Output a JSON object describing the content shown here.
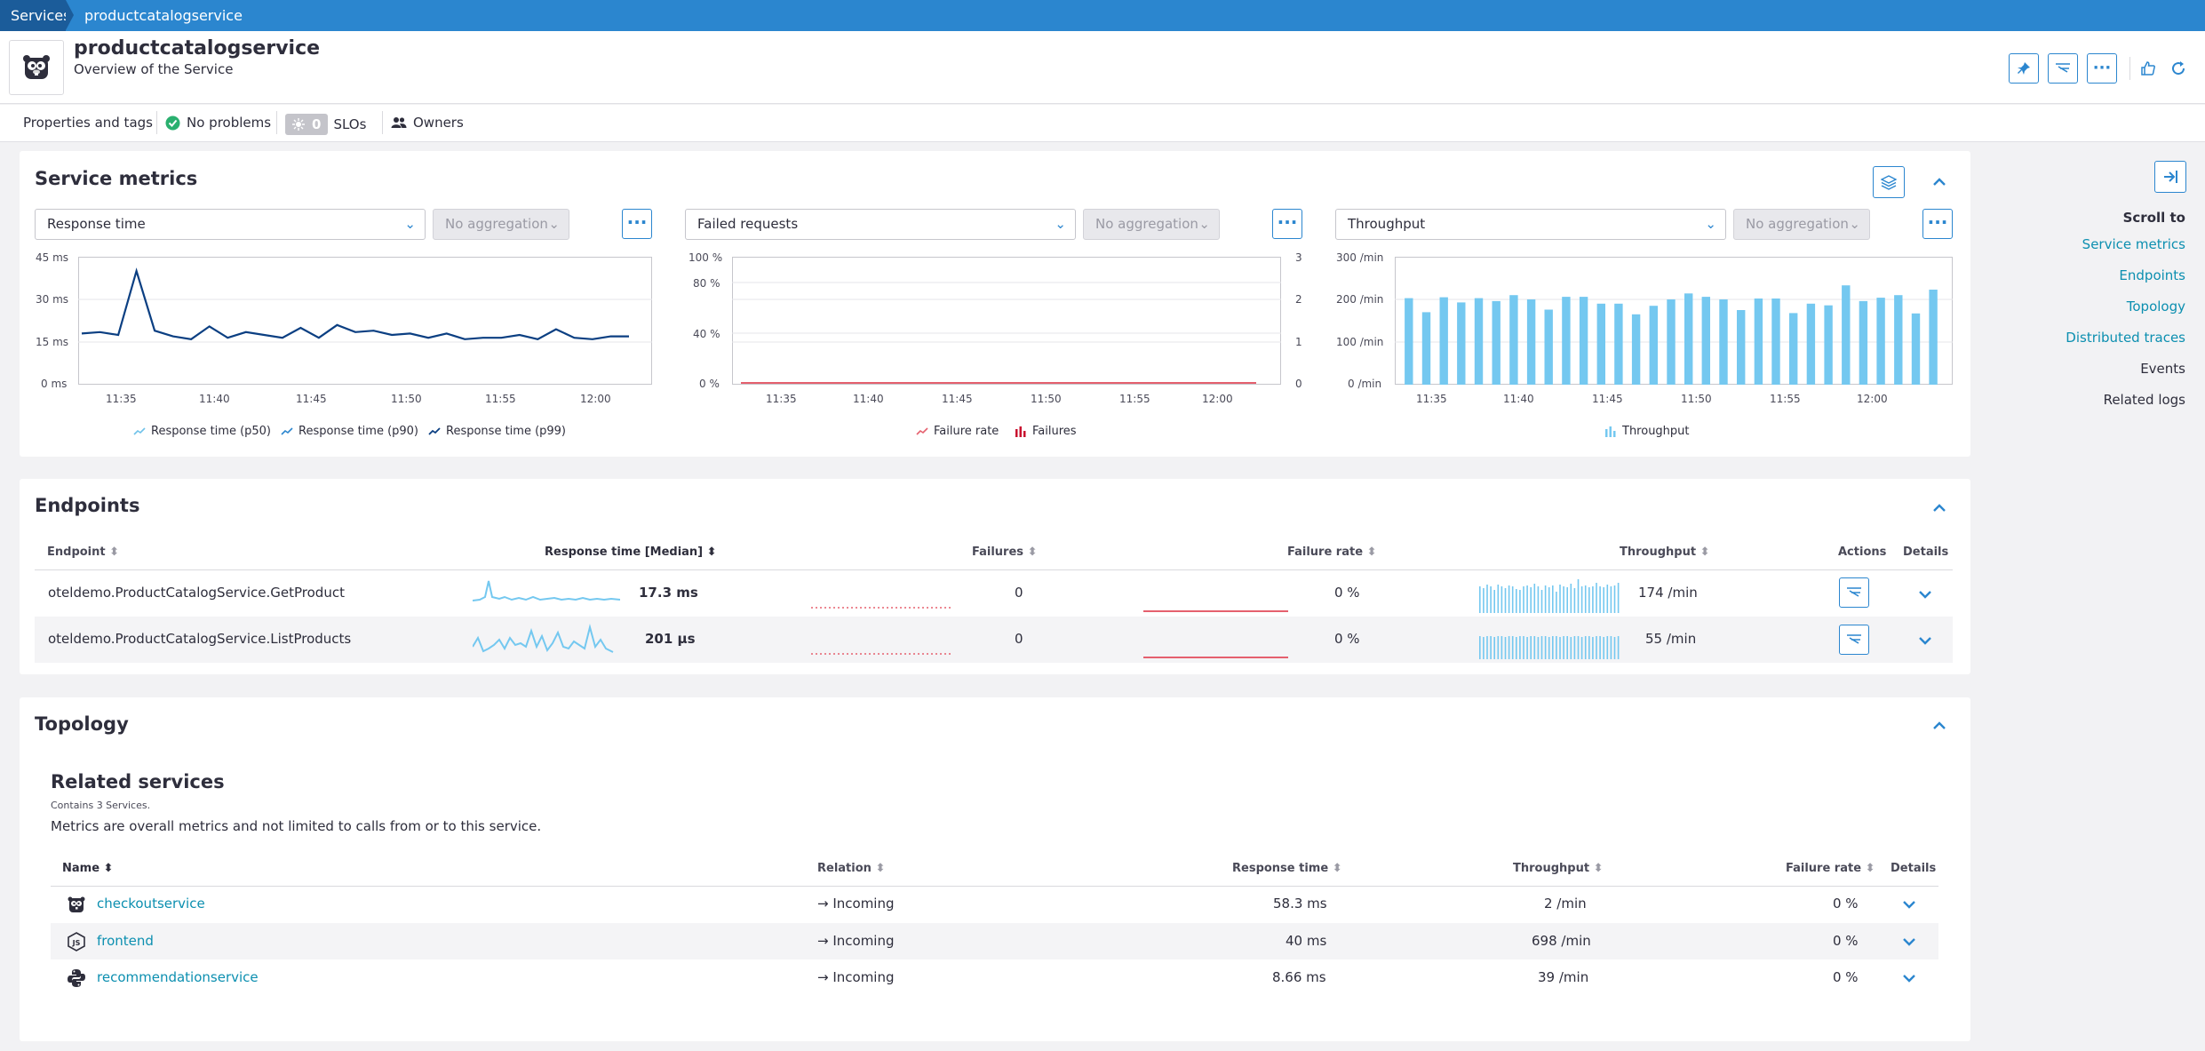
{
  "breadcrumb": {
    "root": "Services",
    "current": "productcatalogservice"
  },
  "service": {
    "name": "productcatalogservice",
    "subtitle": "Overview of the Service"
  },
  "subbar": {
    "properties": "Properties and tags",
    "problems": "No problems",
    "slo_count": "0",
    "slo_label": "SLOs",
    "owners": "Owners"
  },
  "service_metrics": {
    "title": "Service metrics",
    "charts": [
      {
        "metric": "Response time",
        "aggregation": "No aggregation",
        "y_ticks": [
          "45 ms",
          "30 ms",
          "15 ms",
          "0 ms"
        ],
        "x_ticks": [
          "11:35",
          "11:40",
          "11:45",
          "11:50",
          "11:55",
          "12:00"
        ],
        "legend": [
          "Response time (p50)",
          "Response time (p90)",
          "Response time (p99)"
        ]
      },
      {
        "metric": "Failed requests",
        "aggregation": "No aggregation",
        "y_ticks": [
          "100 %",
          "80 %",
          "40 %",
          "0 %"
        ],
        "y2_ticks": [
          "3",
          "2",
          "1",
          "0"
        ],
        "x_ticks": [
          "11:35",
          "11:40",
          "11:45",
          "11:50",
          "11:55",
          "12:00"
        ],
        "legend": [
          "Failure rate",
          "Failures"
        ]
      },
      {
        "metric": "Throughput",
        "aggregation": "No aggregation",
        "y_ticks": [
          "300 /min",
          "200 /min",
          "100 /min",
          "0 /min"
        ],
        "x_ticks": [
          "11:35",
          "11:40",
          "11:45",
          "11:50",
          "11:55",
          "12:00"
        ],
        "legend": [
          "Throughput"
        ]
      }
    ]
  },
  "chart_data": [
    {
      "type": "line",
      "title": "",
      "ylabel": "",
      "ylim": [
        0,
        45
      ],
      "x": [
        "11:32",
        "11:33",
        "11:34",
        "11:35",
        "11:36",
        "11:37",
        "11:38",
        "11:39",
        "11:40",
        "11:41",
        "11:42",
        "11:43",
        "11:44",
        "11:45",
        "11:46",
        "11:47",
        "11:48",
        "11:49",
        "11:50",
        "11:51",
        "11:52",
        "11:53",
        "11:54",
        "11:55",
        "11:56",
        "11:57",
        "11:58",
        "11:59",
        "12:00",
        "12:01",
        "12:02"
      ],
      "series": [
        {
          "name": "Response time (p99)",
          "values": [
            18,
            18.5,
            17.5,
            40,
            19,
            17,
            16,
            20.5,
            16.5,
            18.5,
            17.5,
            16.5,
            20,
            16.5,
            21,
            18.5,
            19,
            17.5,
            18,
            16.5,
            18,
            16,
            16.5,
            16.5,
            17.5,
            16,
            19.5,
            16.5,
            16,
            17,
            17
          ]
        }
      ]
    },
    {
      "type": "line",
      "title": "",
      "ylim": [
        0,
        100
      ],
      "x": [
        "11:32",
        "12:02"
      ],
      "series": [
        {
          "name": "Failure rate",
          "values": [
            0,
            0
          ]
        }
      ]
    },
    {
      "type": "bar",
      "title": "",
      "ylim": [
        0,
        300
      ],
      "categories": [
        "11:32",
        "11:33",
        "11:34",
        "11:35",
        "11:36",
        "11:37",
        "11:38",
        "11:39",
        "11:40",
        "11:41",
        "11:42",
        "11:43",
        "11:44",
        "11:45",
        "11:46",
        "11:47",
        "11:48",
        "11:49",
        "11:50",
        "11:51",
        "11:52",
        "11:53",
        "11:54",
        "11:55",
        "11:56",
        "11:57",
        "11:58",
        "11:59",
        "12:00",
        "12:01",
        "12:02"
      ],
      "series": [
        {
          "name": "Throughput",
          "values": [
            203,
            170,
            205,
            193,
            203,
            196,
            210,
            200,
            176,
            206,
            206,
            190,
            190,
            165,
            185,
            200,
            214,
            206,
            200,
            175,
            202,
            202,
            168,
            190,
            186,
            233,
            196,
            204,
            210,
            167,
            223
          ]
        }
      ]
    }
  ],
  "endpoints": {
    "title": "Endpoints",
    "columns": [
      "Endpoint",
      "Response time [Median]",
      "Failures",
      "Failure rate",
      "Throughput",
      "Actions",
      "Details"
    ],
    "rows": [
      {
        "name": "oteldemo.ProductCatalogService.GetProduct",
        "response_time": "17.3 ms",
        "failures": "0",
        "failure_rate": "0 %",
        "throughput": "174 /min"
      },
      {
        "name": "oteldemo.ProductCatalogService.ListProducts",
        "response_time": "201 μs",
        "failures": "0",
        "failure_rate": "0 %",
        "throughput": "55 /min"
      }
    ]
  },
  "topology": {
    "title": "Topology",
    "related_title": "Related services",
    "contains": "Contains 3 Services.",
    "note": "Metrics are overall metrics and not limited to calls from or to this service.",
    "columns": [
      "Name",
      "Relation",
      "Response time",
      "Throughput",
      "Failure rate",
      "Details"
    ],
    "rows": [
      {
        "name": "checkoutservice",
        "icon": "go-gopher-icon",
        "relation": "→ Incoming",
        "response_time": "58.3 ms",
        "throughput": "2 /min",
        "failure_rate": "0 %"
      },
      {
        "name": "frontend",
        "icon": "nodejs-icon",
        "relation": "→ Incoming",
        "response_time": "40 ms",
        "throughput": "698 /min",
        "failure_rate": "0 %"
      },
      {
        "name": "recommendationservice",
        "icon": "python-icon",
        "relation": "→ Incoming",
        "response_time": "8.66 ms",
        "throughput": "39 /min",
        "failure_rate": "0 %"
      }
    ]
  },
  "scroll_to": {
    "title": "Scroll to",
    "items": [
      "Service metrics",
      "Endpoints",
      "Topology",
      "Distributed traces",
      "Events",
      "Related logs"
    ]
  },
  "colors": {
    "accent": "#2b86cf",
    "link": "#0c8fb0",
    "line_dark": "#0b3f82",
    "bar": "#74c8f0",
    "failure": "#e5606e",
    "success": "#2ab06f"
  }
}
